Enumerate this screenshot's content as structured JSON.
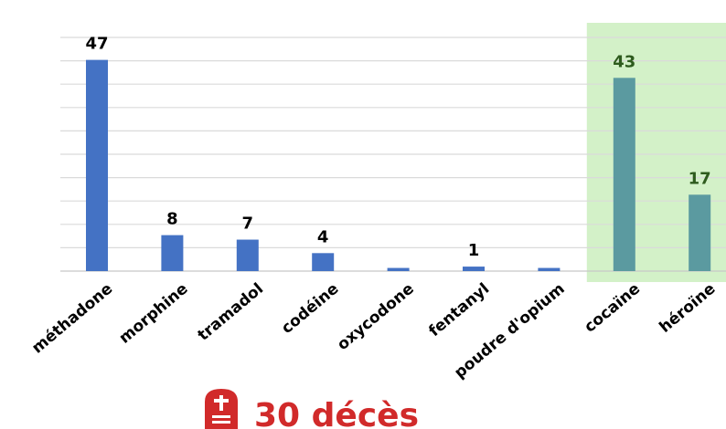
{
  "chart_data": {
    "type": "bar",
    "categories": [
      "méthadone",
      "morphine",
      "tramadol",
      "codéine",
      "oxycodone",
      "fentanyl",
      "poudre d'opium",
      "cocaïne",
      "héroïne"
    ],
    "values": [
      47,
      8,
      7,
      4,
      0.7,
      1,
      0.7,
      43,
      17
    ],
    "data_labels": [
      "47",
      "8",
      "7",
      "4",
      "",
      "1",
      "",
      "43",
      "17"
    ],
    "ylim": [
      0,
      52
    ],
    "grid": true,
    "bar_color": "#4472c4",
    "highlight_bar_color": "#5b9aa0",
    "highlight_categories": [
      "cocaïne",
      "héroïne"
    ],
    "highlight_background": "#d3f1c8",
    "label_color": "#000000",
    "highlight_label_color": "#2e5b1e",
    "title": "",
    "xlabel": "",
    "ylabel": ""
  },
  "footer": {
    "text": "30 décès",
    "text_color": "#d12a2a",
    "icon": "tombstone-cross-icon",
    "icon_color": "#d12a2a"
  }
}
